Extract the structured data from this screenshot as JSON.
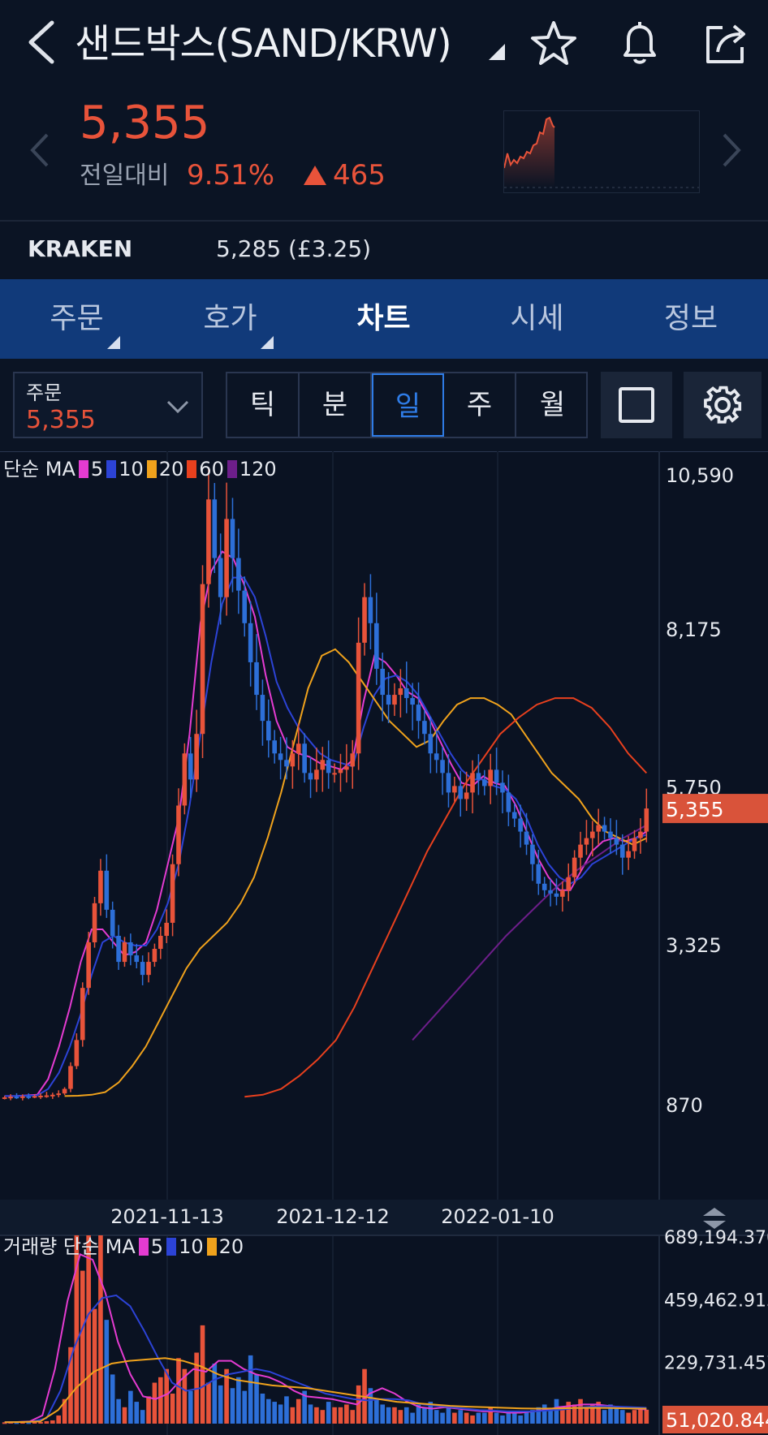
{
  "header": {
    "title": "샌드박스(SAND/KRW)",
    "icons": [
      "back-icon",
      "dropdown-triangle-icon",
      "star-icon",
      "bell-icon",
      "share-icon"
    ]
  },
  "quote": {
    "price": "5,355",
    "compare_label": "전일대비",
    "change_pct": "9.51%",
    "change_abs": "465",
    "color_up": "#e8533a"
  },
  "exchange": {
    "name": "KRAKEN",
    "price": "5,285 (£3.25)"
  },
  "tabs": [
    {
      "label": "주문",
      "active": false,
      "corner": true
    },
    {
      "label": "호가",
      "active": false,
      "corner": true
    },
    {
      "label": "차트",
      "active": true,
      "corner": false
    },
    {
      "label": "시세",
      "active": false,
      "corner": false
    },
    {
      "label": "정보",
      "active": false,
      "corner": false
    }
  ],
  "order": {
    "label": "주문",
    "value": "5,355"
  },
  "periods": [
    {
      "label": "틱",
      "selected": false
    },
    {
      "label": "분",
      "selected": false
    },
    {
      "label": "일",
      "selected": true
    },
    {
      "label": "주",
      "selected": false
    },
    {
      "label": "월",
      "selected": false
    }
  ],
  "chart_data": [
    {
      "type": "candlestick",
      "legend": {
        "prefix": "단순 MA",
        "items": [
          {
            "label": "5",
            "color": "#e43bd1"
          },
          {
            "label": "10",
            "color": "#2c43d6"
          },
          {
            "label": "20",
            "color": "#f0a21c"
          },
          {
            "label": "60",
            "color": "#e8401e"
          },
          {
            "label": "120",
            "color": "#6d1e8a"
          }
        ]
      },
      "yticks": [
        10590,
        8175,
        5750,
        3325,
        870
      ],
      "ytick_labels": [
        "10,590",
        "8,175",
        "5,750",
        "3,325",
        "870"
      ],
      "ylim": [
        870,
        10590
      ],
      "xtick_labels": [
        "2021-11-13",
        "2021-12-12",
        "2022-01-10"
      ],
      "current_price_label": "5,355",
      "current_price": 5355,
      "candle_count": 108,
      "colors": {
        "up": "#e8533a",
        "down": "#2d6fd8"
      },
      "closes": [
        920,
        930,
        925,
        935,
        930,
        940,
        945,
        950,
        960,
        980,
        1050,
        1400,
        1800,
        2600,
        3300,
        3900,
        4400,
        3800,
        3400,
        3000,
        3300,
        3100,
        3000,
        2800,
        3000,
        3200,
        3400,
        3600,
        4500,
        5400,
        6200,
        5800,
        6500,
        8800,
        10100,
        9200,
        8600,
        9800,
        9200,
        8700,
        8200,
        7600,
        7100,
        6700,
        6400,
        6200,
        6100,
        6000,
        6200,
        6350,
        5900,
        5800,
        5950,
        6100,
        5900,
        5900,
        5950,
        6000,
        6200,
        7900,
        8600,
        8200,
        7500,
        7100,
        6950,
        7100,
        7200,
        7050,
        6950,
        6700,
        6500,
        6200,
        6100,
        5900,
        5600,
        5700,
        5500,
        5600,
        5900,
        5800,
        5700,
        5950,
        5750,
        5600,
        5300,
        5200,
        5000,
        4800,
        4500,
        4200,
        4100,
        4050,
        4000,
        4100,
        4300,
        4600,
        4800,
        4900,
        5000,
        5100,
        5000,
        4900,
        4800,
        4600,
        4700,
        4900,
        5000,
        5355
      ],
      "ma_series": [
        {
          "name": "5",
          "values": [
            940,
            940,
            950,
            960,
            1200,
            1700,
            2300,
            3000,
            3500,
            3500,
            3300,
            3100,
            3150,
            3300,
            3800,
            4500,
            5200,
            6500,
            8200,
            9000,
            9300,
            9200,
            8800,
            8300,
            7400,
            6700,
            6300,
            6200,
            6150,
            6050,
            6000,
            5950,
            6100,
            7000,
            7700,
            7600,
            7400,
            7150,
            7050,
            6750,
            6400,
            6050,
            5750,
            5700,
            5850,
            5750,
            5700,
            5400,
            5000,
            4600,
            4300,
            4100,
            4100,
            4400,
            4700,
            4850,
            4900,
            4850,
            4900,
            5000
          ]
        },
        {
          "name": "10",
          "values": [
            940,
            940,
            945,
            950,
            1050,
            1300,
            1700,
            2200,
            2800,
            3300,
            3400,
            3300,
            3250,
            3250,
            3500,
            3900,
            4500,
            5400,
            6500,
            7600,
            8500,
            8900,
            8900,
            8600,
            8000,
            7300,
            6900,
            6600,
            6400,
            6200,
            6100,
            6050,
            6000,
            6600,
            7100,
            7350,
            7400,
            7300,
            7100,
            6800,
            6500,
            6200,
            5950,
            5800,
            5800,
            5700,
            5650,
            5500,
            5200,
            4800,
            4500,
            4300,
            4200,
            4300,
            4500,
            4600,
            4700,
            4800,
            4900,
            4950
          ]
        },
        {
          "name": "20",
          "values": [
            940,
            945,
            960,
            1000,
            1150,
            1400,
            1700,
            2100,
            2500,
            2900,
            3200,
            3400,
            3600,
            3900,
            4300,
            4900,
            5600,
            6400,
            7200,
            7700,
            7800,
            7600,
            7300,
            7000,
            6700,
            6500,
            6300,
            6400,
            6700,
            6950,
            7050,
            7050,
            6950,
            6800,
            6500,
            6200,
            5900,
            5700,
            5500,
            5200,
            5000,
            4900,
            4800,
            4900
          ]
        },
        {
          "name": "60",
          "values": [
            930,
            960,
            1050,
            1250,
            1500,
            1800,
            2300,
            2900,
            3500,
            4100,
            4700,
            5200,
            5700,
            6100,
            6500,
            6750,
            6950,
            7050,
            7050,
            6900,
            6600,
            6200,
            5900
          ]
        },
        {
          "name": "120",
          "values": [
            1800,
            2200,
            2600,
            3000,
            3400,
            3750,
            4100,
            4400,
            4650,
            4900,
            5100
          ]
        }
      ]
    },
    {
      "type": "bar",
      "legend": {
        "prefix": "거래량 단순 MA",
        "items": [
          {
            "label": "5",
            "color": "#e43bd1"
          },
          {
            "label": "10",
            "color": "#2c43d6"
          },
          {
            "label": "20",
            "color": "#f0a21c"
          }
        ]
      },
      "yticks": [
        689194.37,
        459462.913,
        229731.457
      ],
      "ytick_labels": [
        "689,194.370",
        "459,462.913",
        "229,731.457"
      ],
      "current_volume_label": "51,020.844",
      "ylim": [
        0,
        780000
      ],
      "volumes": [
        5000,
        6000,
        5000,
        7000,
        5000,
        8000,
        6000,
        9000,
        12000,
        30000,
        90000,
        280000,
        780000,
        560000,
        780000,
        420000,
        700000,
        380000,
        180000,
        90000,
        60000,
        120000,
        80000,
        50000,
        100000,
        150000,
        170000,
        200000,
        110000,
        240000,
        200000,
        120000,
        260000,
        360000,
        150000,
        220000,
        140000,
        200000,
        130000,
        170000,
        120000,
        250000,
        180000,
        110000,
        90000,
        80000,
        70000,
        100000,
        60000,
        90000,
        120000,
        70000,
        60000,
        50000,
        80000,
        60000,
        60000,
        70000,
        50000,
        140000,
        200000,
        130000,
        90000,
        70000,
        60000,
        60000,
        50000,
        60000,
        40000,
        70000,
        60000,
        80000,
        50000,
        40000,
        60000,
        40000,
        50000,
        40000,
        30000,
        40000,
        40000,
        60000,
        40000,
        30000,
        40000,
        40000,
        30000,
        40000,
        50000,
        60000,
        70000,
        50000,
        90000,
        60000,
        80000,
        70000,
        90000,
        60000,
        70000,
        80000,
        50000,
        70000,
        60000,
        50000,
        40000,
        50000,
        60000,
        51021
      ],
      "ma_series": [
        {
          "name": "5",
          "values": [
            5000,
            6000,
            8000,
            30000,
            200000,
            450000,
            620000,
            600000,
            480000,
            300000,
            180000,
            100000,
            90000,
            110000,
            160000,
            200000,
            190000,
            230000,
            230000,
            200000,
            180000,
            170000,
            150000,
            120000,
            100000,
            95000,
            90000,
            80000,
            70000,
            110000,
            130000,
            110000,
            80000,
            60000,
            55000,
            60000,
            55000,
            50000,
            45000,
            45000,
            40000,
            40000,
            45000,
            50000,
            60000,
            65000,
            70000,
            70000,
            65000,
            60000,
            55000,
            52000
          ]
        },
        {
          "name": "10",
          "values": [
            5000,
            6000,
            7000,
            20000,
            120000,
            280000,
            400000,
            460000,
            470000,
            430000,
            340000,
            240000,
            150000,
            120000,
            130000,
            160000,
            180000,
            190000,
            200000,
            190000,
            170000,
            150000,
            130000,
            110000,
            100000,
            90000,
            85000,
            90000,
            90000,
            85000,
            70000,
            65000,
            60000,
            55000,
            50000,
            48000,
            45000,
            45000,
            45000,
            48000,
            52000,
            58000,
            62000,
            64000,
            62000,
            60000,
            58000
          ]
        },
        {
          "name": "20",
          "values": [
            5000,
            6000,
            8000,
            50000,
            130000,
            190000,
            220000,
            230000,
            235000,
            240000,
            230000,
            210000,
            180000,
            160000,
            150000,
            140000,
            135000,
            130000,
            120000,
            110000,
            100000,
            90000,
            80000,
            75000,
            70000,
            65000,
            62000,
            60000,
            58000,
            56000,
            55000,
            56000,
            57000,
            58000,
            57000,
            56000,
            55000
          ]
        }
      ]
    }
  ]
}
